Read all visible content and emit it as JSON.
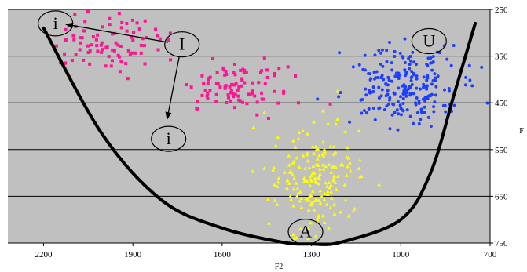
{
  "chart_data": {
    "type": "scatter",
    "xlabel": "F2",
    "ylabel": "F",
    "x_reversed": true,
    "y_reversed": true,
    "xlim": [
      2320,
      700
    ],
    "ylim": [
      250,
      750
    ],
    "x_ticks": [
      2200,
      1900,
      1600,
      1300,
      1000,
      700
    ],
    "y_ticks": [
      250,
      350,
      450,
      550,
      650,
      750
    ],
    "grid": "horizontal",
    "background": "#c0c0c0",
    "series": [
      {
        "color": "#ff1493",
        "marker": "square",
        "clusters": [
          {
            "cx": 1980,
            "cy": 318,
            "sx": 100,
            "sy": 32,
            "n": 90
          },
          {
            "cx": 1550,
            "cy": 418,
            "sx": 90,
            "sy": 30,
            "n": 95
          }
        ]
      },
      {
        "color": "#ffff00",
        "marker": "triangle",
        "clusters": [
          {
            "cx": 1290,
            "cy": 612,
            "sx": 75,
            "sy": 55,
            "n": 190
          }
        ]
      },
      {
        "color": "#1f3fff",
        "marker": "circle",
        "clusters": [
          {
            "cx": 980,
            "cy": 410,
            "sx": 95,
            "sy": 40,
            "n": 230
          }
        ]
      }
    ],
    "curve": {
      "points": [
        [
          2200,
          290
        ],
        [
          2000,
          520
        ],
        [
          1800,
          660
        ],
        [
          1600,
          718
        ],
        [
          1400,
          748
        ],
        [
          1300,
          752
        ],
        [
          1200,
          748
        ],
        [
          1000,
          700
        ],
        [
          900,
          600
        ],
        [
          820,
          430
        ],
        [
          750,
          280
        ]
      ]
    },
    "annotations": [
      {
        "text": "i",
        "x": 2160,
        "y": 280
      },
      {
        "text": "I",
        "x": 1735,
        "y": 325
      },
      {
        "text": "i",
        "x": 1780,
        "y": 527
      },
      {
        "text": "U",
        "x": 905,
        "y": 318
      },
      {
        "text": "A",
        "x": 1320,
        "y": 726
      }
    ],
    "arrows": [
      {
        "from": [
          1735,
          325
        ],
        "to": [
          2125,
          282
        ]
      },
      {
        "from": [
          1735,
          325
        ],
        "to": [
          1785,
          485
        ]
      }
    ]
  }
}
